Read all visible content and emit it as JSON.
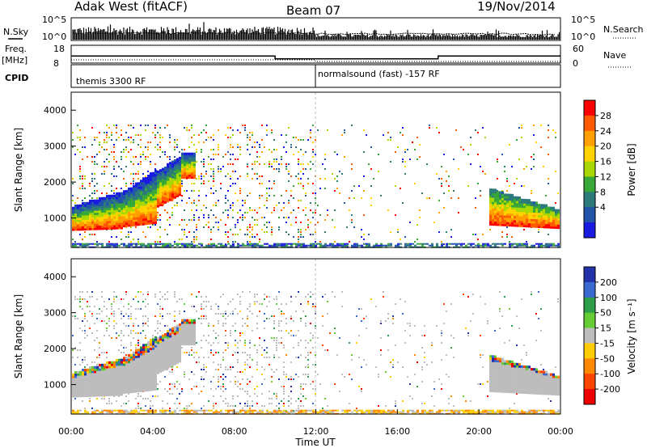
{
  "header": {
    "station": "Adak West (fitACF)",
    "beam": "Beam 07",
    "date": "19/Nov/2014"
  },
  "noise_panel": {
    "left_label": "N.Sky",
    "right_label": "N.Search",
    "left_ticks": [
      "10^5",
      "10^0"
    ],
    "right_ticks": [
      "10^5",
      "10^0"
    ]
  },
  "freq_panel": {
    "left_label_top": "Freq.",
    "left_label_unit": "[MHz]",
    "right_label": "Nave",
    "left_ticks": [
      "18",
      "8"
    ],
    "right_ticks": [
      "60",
      "0"
    ]
  },
  "cpid_panel": {
    "label": "CPID",
    "modes": [
      {
        "start_hour": 0,
        "end_hour": 12,
        "label": "themis 3300 RF"
      },
      {
        "start_hour": 12,
        "end_hour": 24,
        "label": "normalsound (fast) -157 RF"
      }
    ]
  },
  "chart_data": [
    {
      "type": "heatmap",
      "name": "power",
      "ylabel": "Slant Range [km]",
      "xlim": [
        0,
        24
      ],
      "ylim": [
        180,
        4500
      ],
      "yticks": [
        1000,
        2000,
        3000,
        4000
      ],
      "colorbar": {
        "label": "Power [dB]",
        "ticks": [
          "28",
          "24",
          "20",
          "16",
          "12",
          "8",
          "4"
        ],
        "colors": [
          "#ff0000",
          "#ff5a00",
          "#ffa000",
          "#ffd200",
          "#a8d800",
          "#38a838",
          "#2c7a7a",
          "#2255aa",
          "#1a1ae0"
        ]
      },
      "data_extent_km": [
        200,
        3600
      ]
    },
    {
      "type": "heatmap",
      "name": "velocity",
      "ylabel": "Slant Range [km]",
      "xlabel": "Time UT",
      "xlim": [
        0,
        24
      ],
      "ylim": [
        180,
        4500
      ],
      "yticks": [
        1000,
        2000,
        3000,
        4000
      ],
      "xticks": [
        "00:00",
        "04:00",
        "08:00",
        "12:00",
        "16:00",
        "20:00",
        "00:00"
      ],
      "colorbar": {
        "label": "Velocity [m s⁻¹]",
        "ticks": [
          "200",
          "100",
          "50",
          "15",
          "-15",
          "-50",
          "-100",
          "-200"
        ],
        "colors": [
          "#2233aa",
          "#3a6ad0",
          "#2e9e4a",
          "#66cc33",
          "#bdbdbd",
          "#ffcc00",
          "#ff8800",
          "#ff4400",
          "#ee0000"
        ]
      },
      "data_extent_km": [
        200,
        3600
      ]
    }
  ]
}
